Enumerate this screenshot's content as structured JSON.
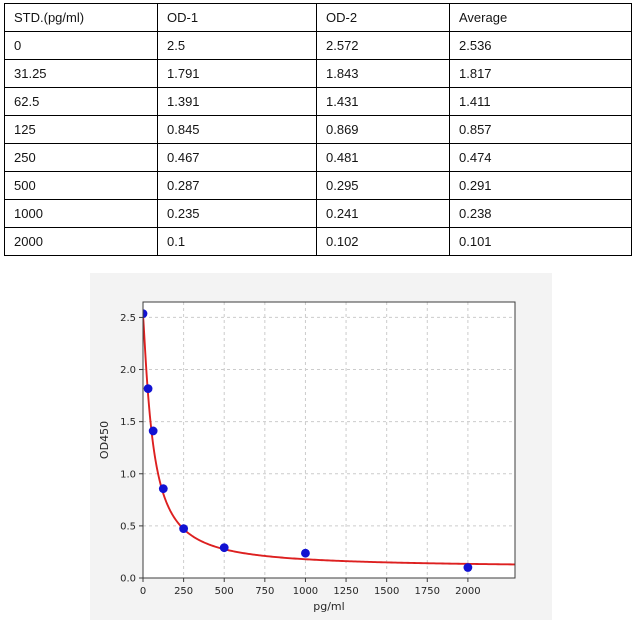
{
  "table": {
    "headers": [
      "STD.(pg/ml)",
      "OD-1",
      "OD-2",
      "Average"
    ],
    "rows": [
      [
        "0",
        "2.5",
        "2.572",
        "2.536"
      ],
      [
        "31.25",
        "1.791",
        "1.843",
        "1.817"
      ],
      [
        "62.5",
        "1.391",
        "1.431",
        "1.411"
      ],
      [
        "125",
        "0.845",
        "0.869",
        "0.857"
      ],
      [
        "250",
        "0.467",
        "0.481",
        "0.474"
      ],
      [
        "500",
        "0.287",
        "0.295",
        "0.291"
      ],
      [
        "1000",
        "0.235",
        "0.241",
        "0.238"
      ],
      [
        "2000",
        "0.1",
        "0.102",
        "0.101"
      ]
    ]
  },
  "chart_data": {
    "type": "scatter",
    "title": "",
    "xlabel": "pg/ml",
    "ylabel": "OD450",
    "x": [
      0,
      31.25,
      62.5,
      125,
      250,
      500,
      1000,
      2000
    ],
    "y": [
      2.536,
      1.817,
      1.411,
      0.857,
      0.474,
      0.291,
      0.238,
      0.101
    ],
    "x_ticks": [
      0,
      250,
      500,
      750,
      1000,
      1250,
      1500,
      1750,
      2000
    ],
    "y_ticks": [
      0,
      0.5,
      1.0,
      1.5,
      2.0,
      2.5
    ],
    "xlim": [
      0,
      2290
    ],
    "ylim": [
      0,
      2.648
    ],
    "grid": "dashed",
    "legend": "none",
    "fit_curve": {
      "model": "4PL",
      "a": 2.52,
      "b": 1.2,
      "c": 60,
      "d": 0.1
    },
    "colors": {
      "point": "#1212d2",
      "curve": "#dd2020",
      "figure_bg": "#f3f3f3",
      "plot_bg": "#ffffff",
      "grid": "#cccccc",
      "spine": "#3c3c3c",
      "tick_label": "#262626"
    }
  }
}
